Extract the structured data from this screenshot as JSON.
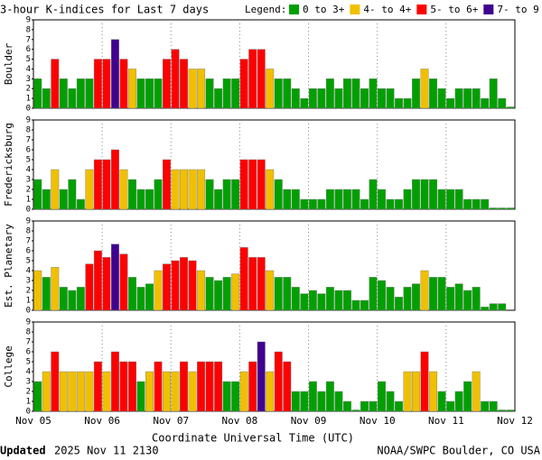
{
  "title": "3-hour K-indices for Last 7 days",
  "legend_title": "Legend:",
  "legend": [
    {
      "label": "0 to 3+",
      "color": "#00a000",
      "min": 0
    },
    {
      "label": "4- to 4+",
      "color": "#f0c000",
      "min": 3.67
    },
    {
      "label": "5- to 6+",
      "color": "#ff0000",
      "min": 4.67
    },
    {
      "label": "7- to 9",
      "color": "#400090",
      "min": 6.67
    }
  ],
  "x_axis": {
    "label": "Coordinate Universal Time (UTC)",
    "ticks": [
      "Nov 05",
      "Nov 06",
      "Nov 07",
      "Nov 08",
      "Nov 09",
      "Nov 10",
      "Nov 11",
      "Nov 12"
    ]
  },
  "footer": {
    "updated_label": "Updated",
    "updated_time": "2025 Nov 11 2130",
    "credit": "NOAA/SWPC Boulder, CO USA"
  },
  "chart_data": [
    {
      "type": "bar",
      "ylabel": "Boulder",
      "ylim": [
        0,
        9
      ],
      "yticks": [
        0,
        1,
        2,
        3,
        4,
        5,
        6,
        7,
        8,
        9
      ],
      "values": [
        3,
        2,
        5,
        3,
        2,
        3,
        3,
        5,
        5,
        7,
        5,
        4,
        3,
        3,
        3,
        5,
        6,
        5,
        4,
        4,
        3,
        2,
        3,
        3,
        5,
        6,
        6,
        4,
        3,
        3,
        2,
        1,
        2,
        2,
        3,
        2,
        3,
        3,
        2,
        3,
        2,
        2,
        1,
        1,
        3,
        4,
        3,
        2,
        1,
        2,
        2,
        2,
        1,
        3,
        1,
        0
      ]
    },
    {
      "type": "bar",
      "ylabel": "Fredericksburg",
      "ylim": [
        0,
        9
      ],
      "yticks": [
        0,
        1,
        2,
        3,
        4,
        5,
        6,
        7,
        8,
        9
      ],
      "values": [
        3,
        2,
        4,
        2,
        3,
        1,
        4,
        5,
        5,
        6,
        4,
        3,
        2,
        2,
        3,
        5,
        4,
        4,
        4,
        4,
        3,
        2,
        3,
        3,
        5,
        5,
        5,
        4,
        3,
        2,
        2,
        1,
        1,
        1,
        2,
        2,
        2,
        2,
        1,
        3,
        2,
        1,
        1,
        2,
        3,
        3,
        3,
        2,
        2,
        2,
        1,
        1,
        1,
        0,
        0,
        0
      ]
    },
    {
      "type": "bar",
      "ylabel": "Est. Planetary",
      "ylim": [
        0,
        9
      ],
      "yticks": [
        0,
        1,
        2,
        3,
        4,
        5,
        6,
        7,
        8,
        9
      ],
      "values": [
        4,
        3.33,
        4.33,
        2.33,
        2,
        2.33,
        4.67,
        6,
        5.33,
        6.67,
        5.67,
        3.33,
        2.33,
        2.67,
        4,
        4.67,
        5,
        5.33,
        5,
        4,
        3.33,
        3,
        3.33,
        3.67,
        6.33,
        5.33,
        5.33,
        4,
        3.33,
        3.33,
        2.33,
        1.67,
        2,
        1.67,
        2.33,
        2,
        2,
        1,
        1,
        3.33,
        3,
        2.33,
        1.33,
        2.33,
        2.67,
        4,
        3.33,
        3.33,
        2.33,
        2.67,
        2,
        2.33,
        0.33,
        0.67,
        0.67,
        null
      ]
    },
    {
      "type": "bar",
      "ylabel": "College",
      "ylim": [
        0,
        9
      ],
      "yticks": [
        0,
        1,
        2,
        3,
        4,
        5,
        6,
        7,
        8,
        9
      ],
      "values": [
        3,
        4,
        6,
        4,
        4,
        4,
        4,
        5,
        4,
        6,
        5,
        5,
        3,
        4,
        5,
        4,
        4,
        5,
        4,
        5,
        5,
        5,
        3,
        3,
        4,
        5,
        7,
        4,
        6,
        5,
        2,
        2,
        3,
        2,
        3,
        2,
        1,
        0,
        1,
        1,
        3,
        2,
        1,
        4,
        4,
        6,
        4,
        2,
        1,
        2,
        3,
        4,
        1,
        1,
        0,
        0
      ]
    }
  ]
}
